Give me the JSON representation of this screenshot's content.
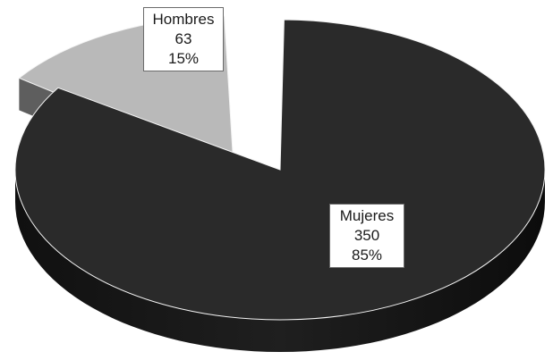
{
  "chart_data": {
    "type": "pie",
    "style": "3d-exploded",
    "title": "",
    "legend": "none",
    "slices": [
      {
        "label": "Mujeres",
        "value": 350,
        "percent": "85%",
        "color_top": "#2a2a2a",
        "color_side": "#151515"
      },
      {
        "label": "Hombres",
        "value": 63,
        "percent": "15%",
        "color_top": "#b9b9b9",
        "color_side": "#5e5e5e"
      }
    ]
  }
}
